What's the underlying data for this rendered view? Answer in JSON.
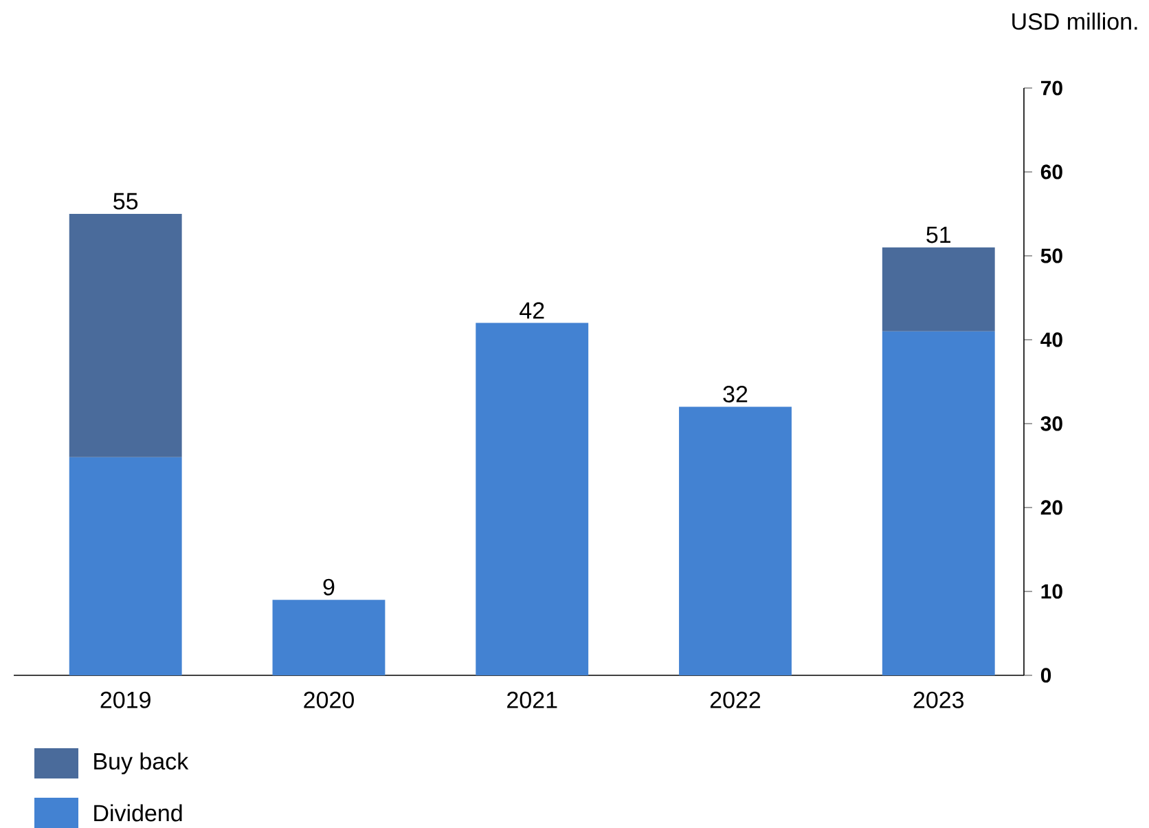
{
  "chart_data": {
    "type": "bar",
    "stacked": true,
    "ylabel": "USD million.",
    "categories": [
      "2019",
      "2020",
      "2021",
      "2022",
      "2023"
    ],
    "series": [
      {
        "name": "Dividend",
        "color": "#4382d2",
        "values": [
          26,
          9,
          42,
          32,
          41
        ]
      },
      {
        "name": "Buy back",
        "color": "#4a6b9b",
        "values": [
          29,
          null,
          null,
          null,
          10
        ]
      }
    ],
    "totals": [
      "55",
      "9",
      "42",
      "32",
      "51"
    ],
    "ylim": [
      0,
      70
    ],
    "yticks": [
      0,
      10,
      20,
      30,
      40,
      50,
      60,
      70
    ],
    "legend": "bottom left",
    "grid": false
  }
}
